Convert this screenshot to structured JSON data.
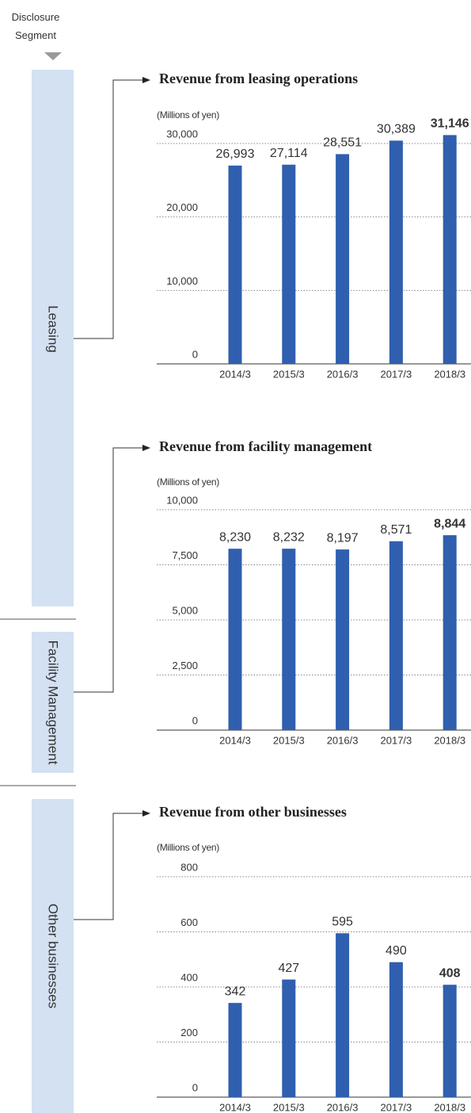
{
  "header": "Disclosure Segment",
  "segments": [
    "Leasing",
    "Facility Management",
    "Other businesses"
  ],
  "chart_data": [
    {
      "type": "bar",
      "title": "Revenue from leasing operations",
      "y_label": "(Millions of yen)",
      "categories": [
        "2014/3",
        "2015/3",
        "2016/3",
        "2017/3",
        "2018/3"
      ],
      "values": [
        26993,
        27114,
        28551,
        30389,
        31146
      ],
      "value_labels": [
        "26,993",
        "27,114",
        "28,551",
        "30,389",
        "31,146"
      ],
      "color": "#2f5fae",
      "ylim": [
        0,
        30000
      ],
      "yticks": [
        0,
        {
          "value": 10000,
          "label": "10,000"
        },
        {
          "value": 20000,
          "label": "20,000"
        },
        {
          "value": 30000,
          "label": "30,000"
        }
      ],
      "grid": true
    },
    {
      "type": "bar",
      "title": "Revenue from facility management",
      "y_label": "(Millions of yen)",
      "categories": [
        "2014/3",
        "2015/3",
        "2016/3",
        "2017/3",
        "2018/3"
      ],
      "values": [
        8230,
        8232,
        8197,
        8571,
        8844
      ],
      "value_labels": [
        "8,230",
        "8,232",
        "8,197",
        "8,571",
        "8,844"
      ],
      "color": "#2f5fae",
      "ylim": [
        0,
        10000
      ],
      "yticks": [
        0,
        {
          "value": 2500,
          "label": "2,500"
        },
        {
          "value": 5000,
          "label": "5,000"
        },
        {
          "value": 7500,
          "label": "7,500"
        },
        {
          "value": 10000,
          "label": "10,000"
        }
      ],
      "grid": true
    },
    {
      "type": "bar",
      "title": "Revenue from other businesses",
      "y_label": "(Millions of yen)",
      "categories": [
        "2014/3",
        "2015/3",
        "2016/3",
        "2017/3",
        "2018/3"
      ],
      "values": [
        342,
        427,
        595,
        490,
        408
      ],
      "color": "#2f5fae",
      "ylim": [
        0,
        800
      ],
      "yticks": [
        0,
        200,
        400,
        600,
        800
      ],
      "grid": true
    }
  ]
}
